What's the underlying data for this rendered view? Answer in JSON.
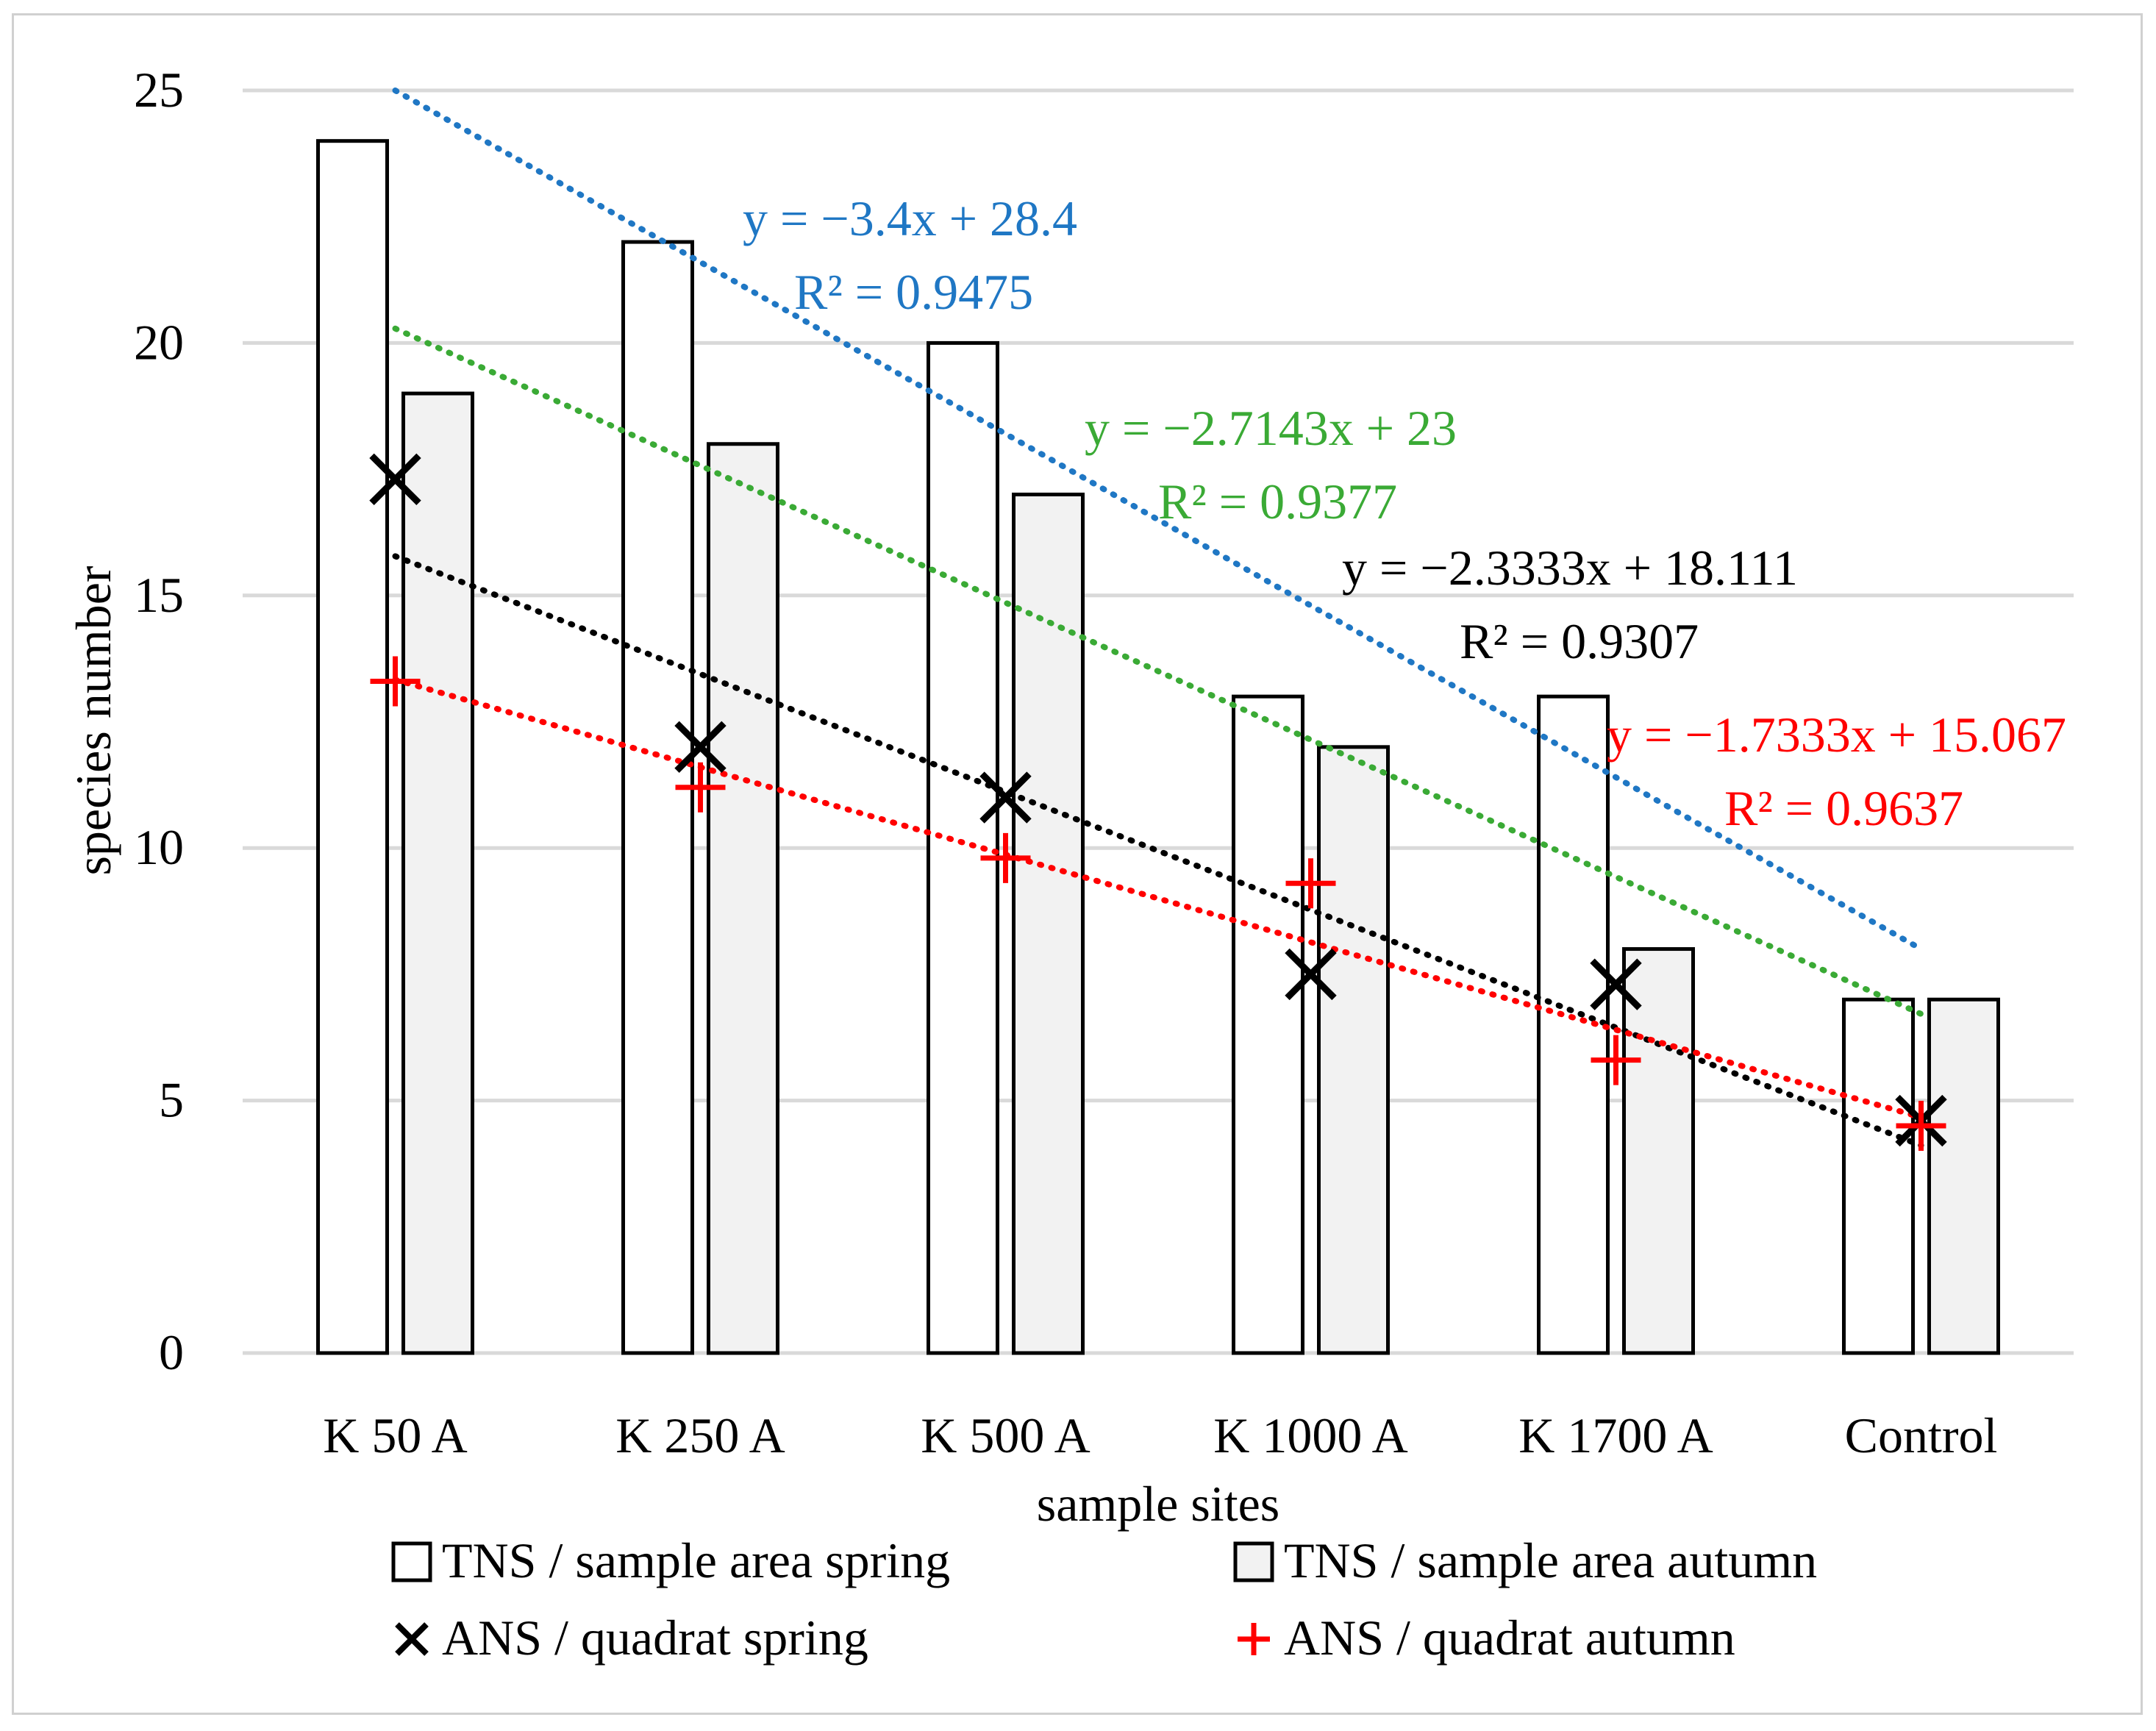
{
  "chart_data": {
    "type": "bar",
    "title": "",
    "xlabel": "sample sites",
    "ylabel": "species number",
    "ylim": [
      0,
      25
    ],
    "yticks": [
      0,
      5,
      10,
      15,
      20,
      25
    ],
    "grid": true,
    "categories": [
      "K 50 A",
      "K 250 A",
      "K 500 A",
      "K 1000 A",
      "K 1700 A",
      "Control"
    ],
    "series": [
      {
        "name": "TNS / sample area spring",
        "kind": "bar",
        "fill": "#ffffff",
        "values": [
          24,
          22,
          20,
          13,
          13,
          7
        ]
      },
      {
        "name": "TNS / sample area autumn",
        "kind": "bar",
        "fill": "#f2f2f2",
        "values": [
          19,
          18,
          17,
          12,
          8,
          7
        ]
      },
      {
        "name": "ANS / quadrat spring",
        "kind": "marker",
        "marker": "x",
        "color": "#000000",
        "values": [
          17.3,
          12.0,
          11.0,
          7.5,
          7.3,
          4.6
        ]
      },
      {
        "name": "ANS / quadrat autumn",
        "kind": "marker",
        "marker": "+",
        "color": "#ff0000",
        "values": [
          13.3,
          11.2,
          9.8,
          9.3,
          5.8,
          4.5
        ]
      }
    ],
    "trendlines": [
      {
        "series": "TNS / sample area spring",
        "color": "#1f77c4",
        "slope": -3.4,
        "intercept": 28.4,
        "equation": "y = −3.4x + 28.4",
        "r2": "R² = 0.9475"
      },
      {
        "series": "TNS / sample area autumn",
        "color": "#3aaa35",
        "slope": -2.7143,
        "intercept": 23,
        "equation": "y = −2.7143x + 23",
        "r2": "R² = 0.9377"
      },
      {
        "series": "ANS / quadrat spring",
        "color": "#000000",
        "slope": -2.3333,
        "intercept": 18.111,
        "equation": "y = −2.3333x + 18.111",
        "r2": "R² = 0.9307"
      },
      {
        "series": "ANS / quadrat autumn",
        "color": "#ff0000",
        "slope": -1.7333,
        "intercept": 15.067,
        "equation": "y = −1.7333x + 15.067",
        "r2": "R² = 0.9637"
      }
    ],
    "legend": {
      "position": "bottom",
      "items": [
        {
          "label": "TNS / sample area spring",
          "symbol": "bar-white"
        },
        {
          "label": "TNS / sample area autumn",
          "symbol": "bar-gray"
        },
        {
          "label": "ANS / quadrat spring",
          "symbol": "x"
        },
        {
          "label": "ANS / quadrat autumn",
          "symbol": "+"
        }
      ]
    }
  }
}
